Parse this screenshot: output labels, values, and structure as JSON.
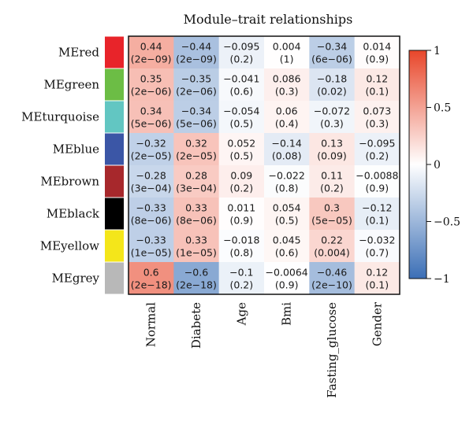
{
  "chart_data": {
    "type": "heatmap",
    "title": "Module–trait relationships",
    "rows": [
      {
        "label": "MEred",
        "color": "#e8242a"
      },
      {
        "label": "MEgreen",
        "color": "#6cbd45"
      },
      {
        "label": "MEturquoise",
        "color": "#62c6c2"
      },
      {
        "label": "MEblue",
        "color": "#3b56a6"
      },
      {
        "label": "MEbrown",
        "color": "#a7282c"
      },
      {
        "label": "MEblack",
        "color": "#000000"
      },
      {
        "label": "MEyellow",
        "color": "#f4e61a"
      },
      {
        "label": "MEgrey",
        "color": "#b8b8b8"
      }
    ],
    "columns": [
      "Normal",
      "Diabete",
      "Age",
      "Bmi",
      "Fasting_glucose",
      "Gender"
    ],
    "values": [
      [
        0.44,
        -0.44,
        -0.095,
        0.004,
        -0.34,
        0.014
      ],
      [
        0.35,
        -0.35,
        -0.041,
        0.086,
        -0.18,
        0.12
      ],
      [
        0.34,
        -0.34,
        -0.054,
        0.06,
        -0.072,
        0.073
      ],
      [
        -0.32,
        0.32,
        0.052,
        -0.14,
        0.13,
        -0.095
      ],
      [
        -0.28,
        0.28,
        0.09,
        -0.022,
        0.11,
        -0.0088
      ],
      [
        -0.33,
        0.33,
        0.011,
        0.054,
        0.3,
        -0.12
      ],
      [
        -0.33,
        0.33,
        -0.018,
        0.045,
        0.22,
        -0.032
      ],
      [
        0.6,
        -0.6,
        -0.1,
        -0.0064,
        -0.46,
        0.12
      ]
    ],
    "value_labels": [
      [
        "0.44",
        "−0.44",
        "−0.095",
        "0.004",
        "−0.34",
        "0.014"
      ],
      [
        "0.35",
        "−0.35",
        "−0.041",
        "0.086",
        "−0.18",
        "0.12"
      ],
      [
        "0.34",
        "−0.34",
        "−0.054",
        "0.06",
        "−0.072",
        "0.073"
      ],
      [
        "−0.32",
        "0.32",
        "0.052",
        "−0.14",
        "0.13",
        "−0.095"
      ],
      [
        "−0.28",
        "0.28",
        "0.09",
        "−0.022",
        "0.11",
        "−0.0088"
      ],
      [
        "−0.33",
        "0.33",
        "0.011",
        "0.054",
        "0.3",
        "−0.12"
      ],
      [
        "−0.33",
        "0.33",
        "−0.018",
        "0.045",
        "0.22",
        "−0.032"
      ],
      [
        "0.6",
        "−0.6",
        "−0.1",
        "−0.0064",
        "−0.46",
        "0.12"
      ]
    ],
    "pvalue_labels": [
      [
        "(2e−09)",
        "(2e−09)",
        "(0.2)",
        "(1)",
        "(6e−06)",
        "(0.9)"
      ],
      [
        "(2e−06)",
        "(2e−06)",
        "(0.6)",
        "(0.3)",
        "(0.02)",
        "(0.1)"
      ],
      [
        "(5e−06)",
        "(5e−06)",
        "(0.5)",
        "(0.4)",
        "(0.3)",
        "(0.3)"
      ],
      [
        "(2e−05)",
        "(2e−05)",
        "(0.5)",
        "(0.08)",
        "(0.09)",
        "(0.2)"
      ],
      [
        "(3e−04)",
        "(3e−04)",
        "(0.2)",
        "(0.8)",
        "(0.2)",
        "(0.9)"
      ],
      [
        "(8e−06)",
        "(8e−06)",
        "(0.9)",
        "(0.5)",
        "(5e−05)",
        "(0.1)"
      ],
      [
        "(1e−05)",
        "(1e−05)",
        "(0.8)",
        "(0.6)",
        "(0.004)",
        "(0.7)"
      ],
      [
        "(2e−18)",
        "(2e−18)",
        "(0.2)",
        "(0.9)",
        "(2e−10)",
        "(0.1)"
      ]
    ],
    "colorbar": {
      "range": [
        -1,
        1
      ],
      "ticks": [
        {
          "value": 1,
          "label": "1"
        },
        {
          "value": 0.5,
          "label": "0.5"
        },
        {
          "value": 0,
          "label": "0"
        },
        {
          "value": -0.5,
          "label": "−0.5"
        },
        {
          "value": -1,
          "label": "−1"
        }
      ],
      "low_color": "#3b6fb6",
      "mid_color": "#ffffff",
      "high_color": "#e8462a"
    }
  }
}
